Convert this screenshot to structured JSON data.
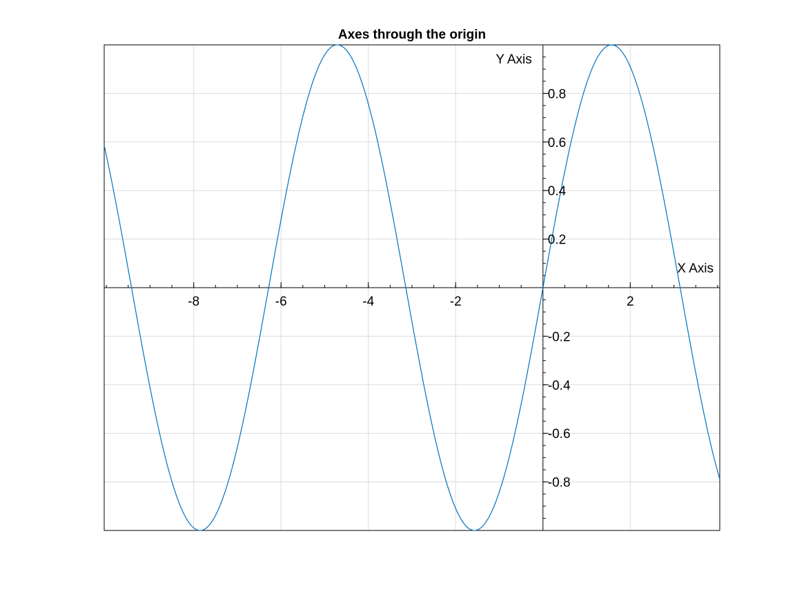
{
  "chart_data": {
    "type": "line",
    "title": "Axes through the origin",
    "xlabel": "X Axis",
    "ylabel": "Y Axis",
    "xlim": [
      -10.05,
      4.05
    ],
    "ylim": [
      -1,
      1
    ],
    "grid": true,
    "axes_location": "origin",
    "xticks": [
      -8,
      -6,
      -4,
      -2,
      2
    ],
    "xtick_labels": [
      "-8",
      "-6",
      "-4",
      "-2",
      "2"
    ],
    "yticks": [
      0.8,
      0.6,
      0.4,
      0.2,
      -0.2,
      -0.4,
      -0.6,
      -0.8
    ],
    "ytick_labels": [
      "0.8",
      "0.6",
      "0.4",
      "0.2",
      "-0.2",
      "-0.4",
      "-0.6",
      "-0.8"
    ],
    "series": [
      {
        "function": "sin(x)",
        "color": "#0072BD",
        "x": [
          -10.0,
          -9.5,
          -9.0,
          -8.5,
          -8.0,
          -7.5,
          -7.0,
          -6.5,
          -6.0,
          -5.5,
          -5.0,
          -4.5,
          -4.0,
          -3.5,
          -3.0,
          -2.5,
          -2.0,
          -1.5,
          -1.0,
          -0.5,
          0.0,
          0.5,
          1.0,
          1.5,
          2.0,
          2.5,
          3.0,
          3.5,
          4.0
        ],
        "y": [
          0.544,
          0.075,
          -0.412,
          -0.798,
          -0.989,
          -0.938,
          -0.657,
          -0.215,
          0.279,
          0.706,
          0.959,
          0.978,
          0.757,
          0.351,
          -0.141,
          -0.598,
          -0.909,
          -0.997,
          -0.841,
          -0.479,
          0.0,
          0.479,
          0.841,
          0.997,
          0.909,
          0.598,
          0.141,
          -0.351,
          -0.757
        ]
      }
    ]
  },
  "colors": {
    "line": "#0072BD",
    "grid": "#dcdcdc",
    "axis": "#000000"
  }
}
